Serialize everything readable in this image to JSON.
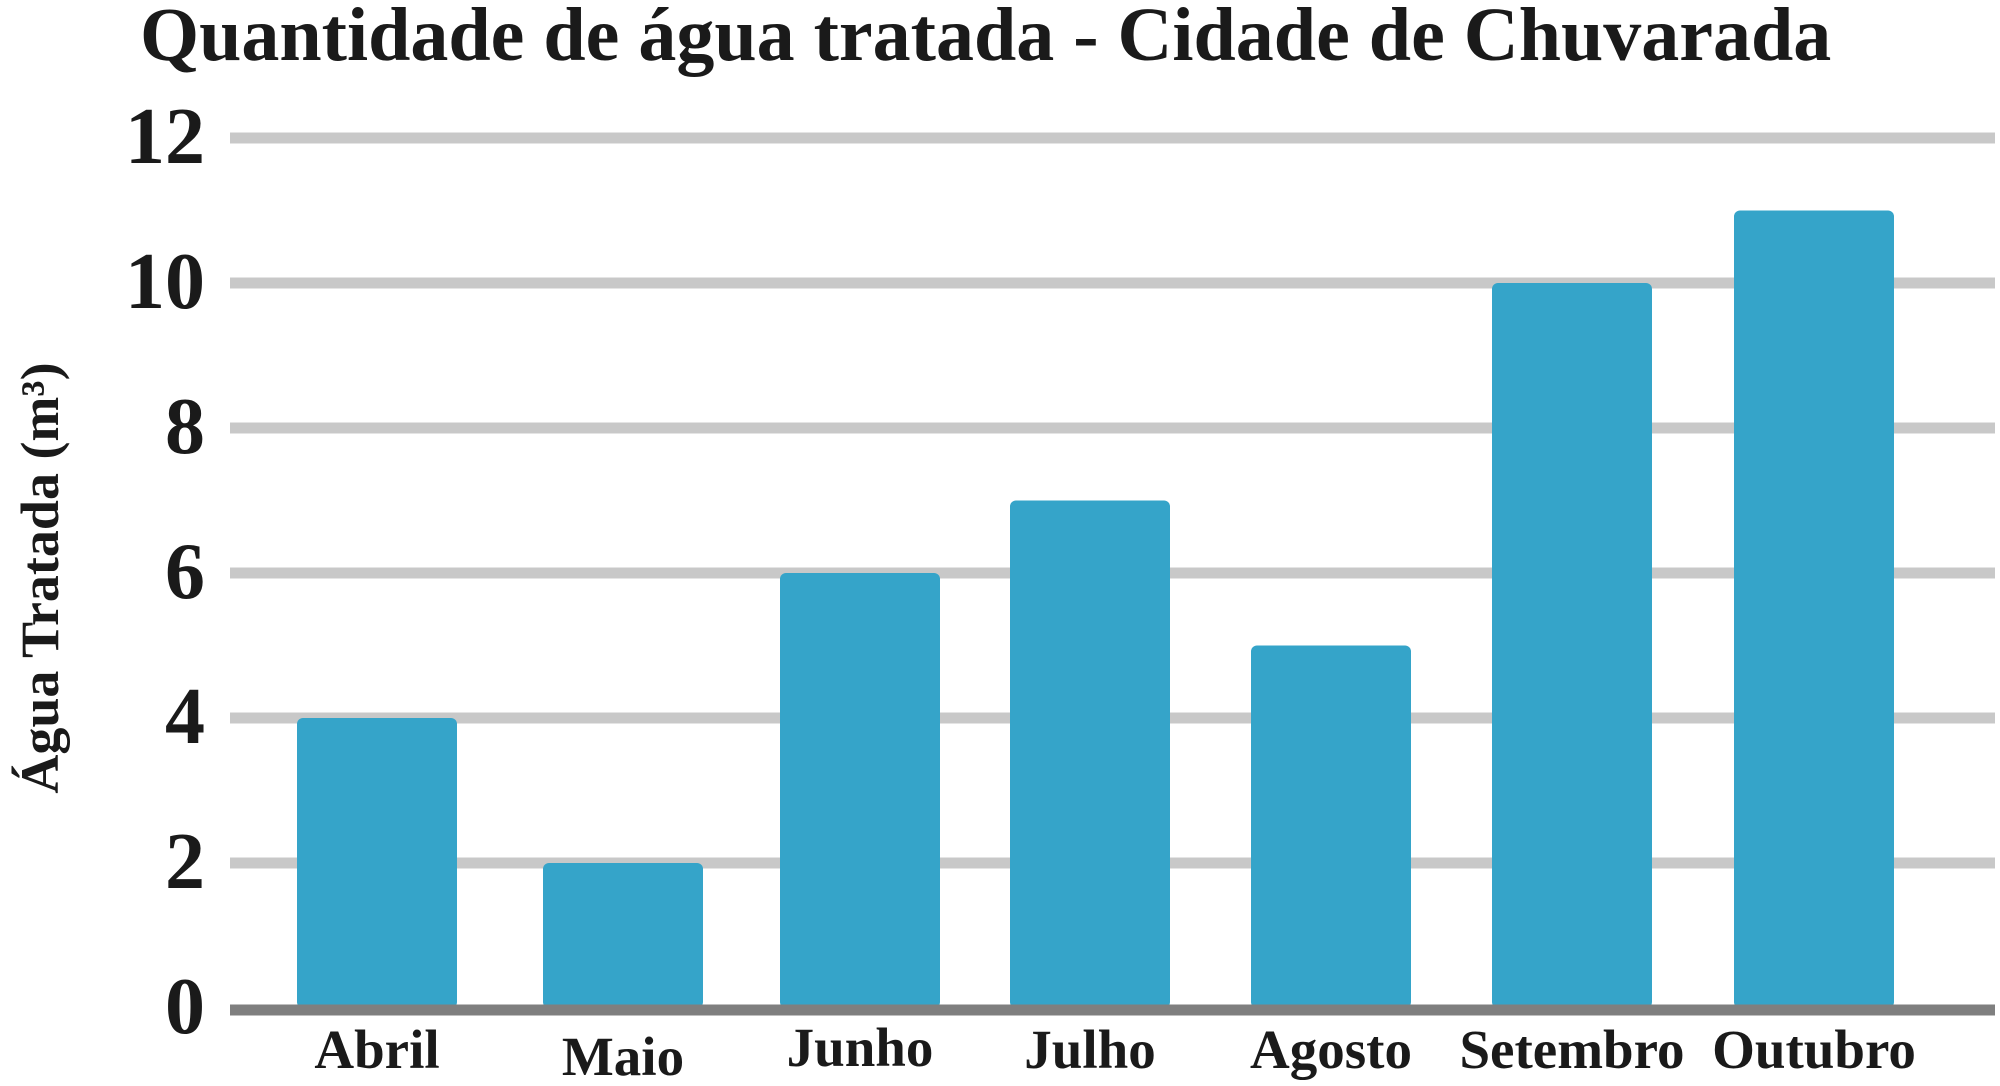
{
  "chart_data": {
    "type": "bar",
    "title": "Quantidade de água tratada - Cidade de Chuvarada",
    "xlabel": "",
    "ylabel": "Água Tratada (m³)",
    "categories": [
      "Abril",
      "Maio",
      "Junho",
      "Julho",
      "Agosto",
      "Setembro",
      "Outubro"
    ],
    "values": [
      4,
      2,
      6,
      7,
      5,
      10,
      11
    ],
    "ylim": [
      0,
      12
    ],
    "yticks": [
      "0",
      "2",
      "4",
      "6",
      "8",
      "10",
      "12"
    ],
    "grid": true,
    "legend": "none",
    "colors": {
      "bar": "#35a4c9",
      "grid": "#c8c8c8",
      "baseline": "#7f7f7f",
      "text": "#1a1a1a"
    }
  }
}
